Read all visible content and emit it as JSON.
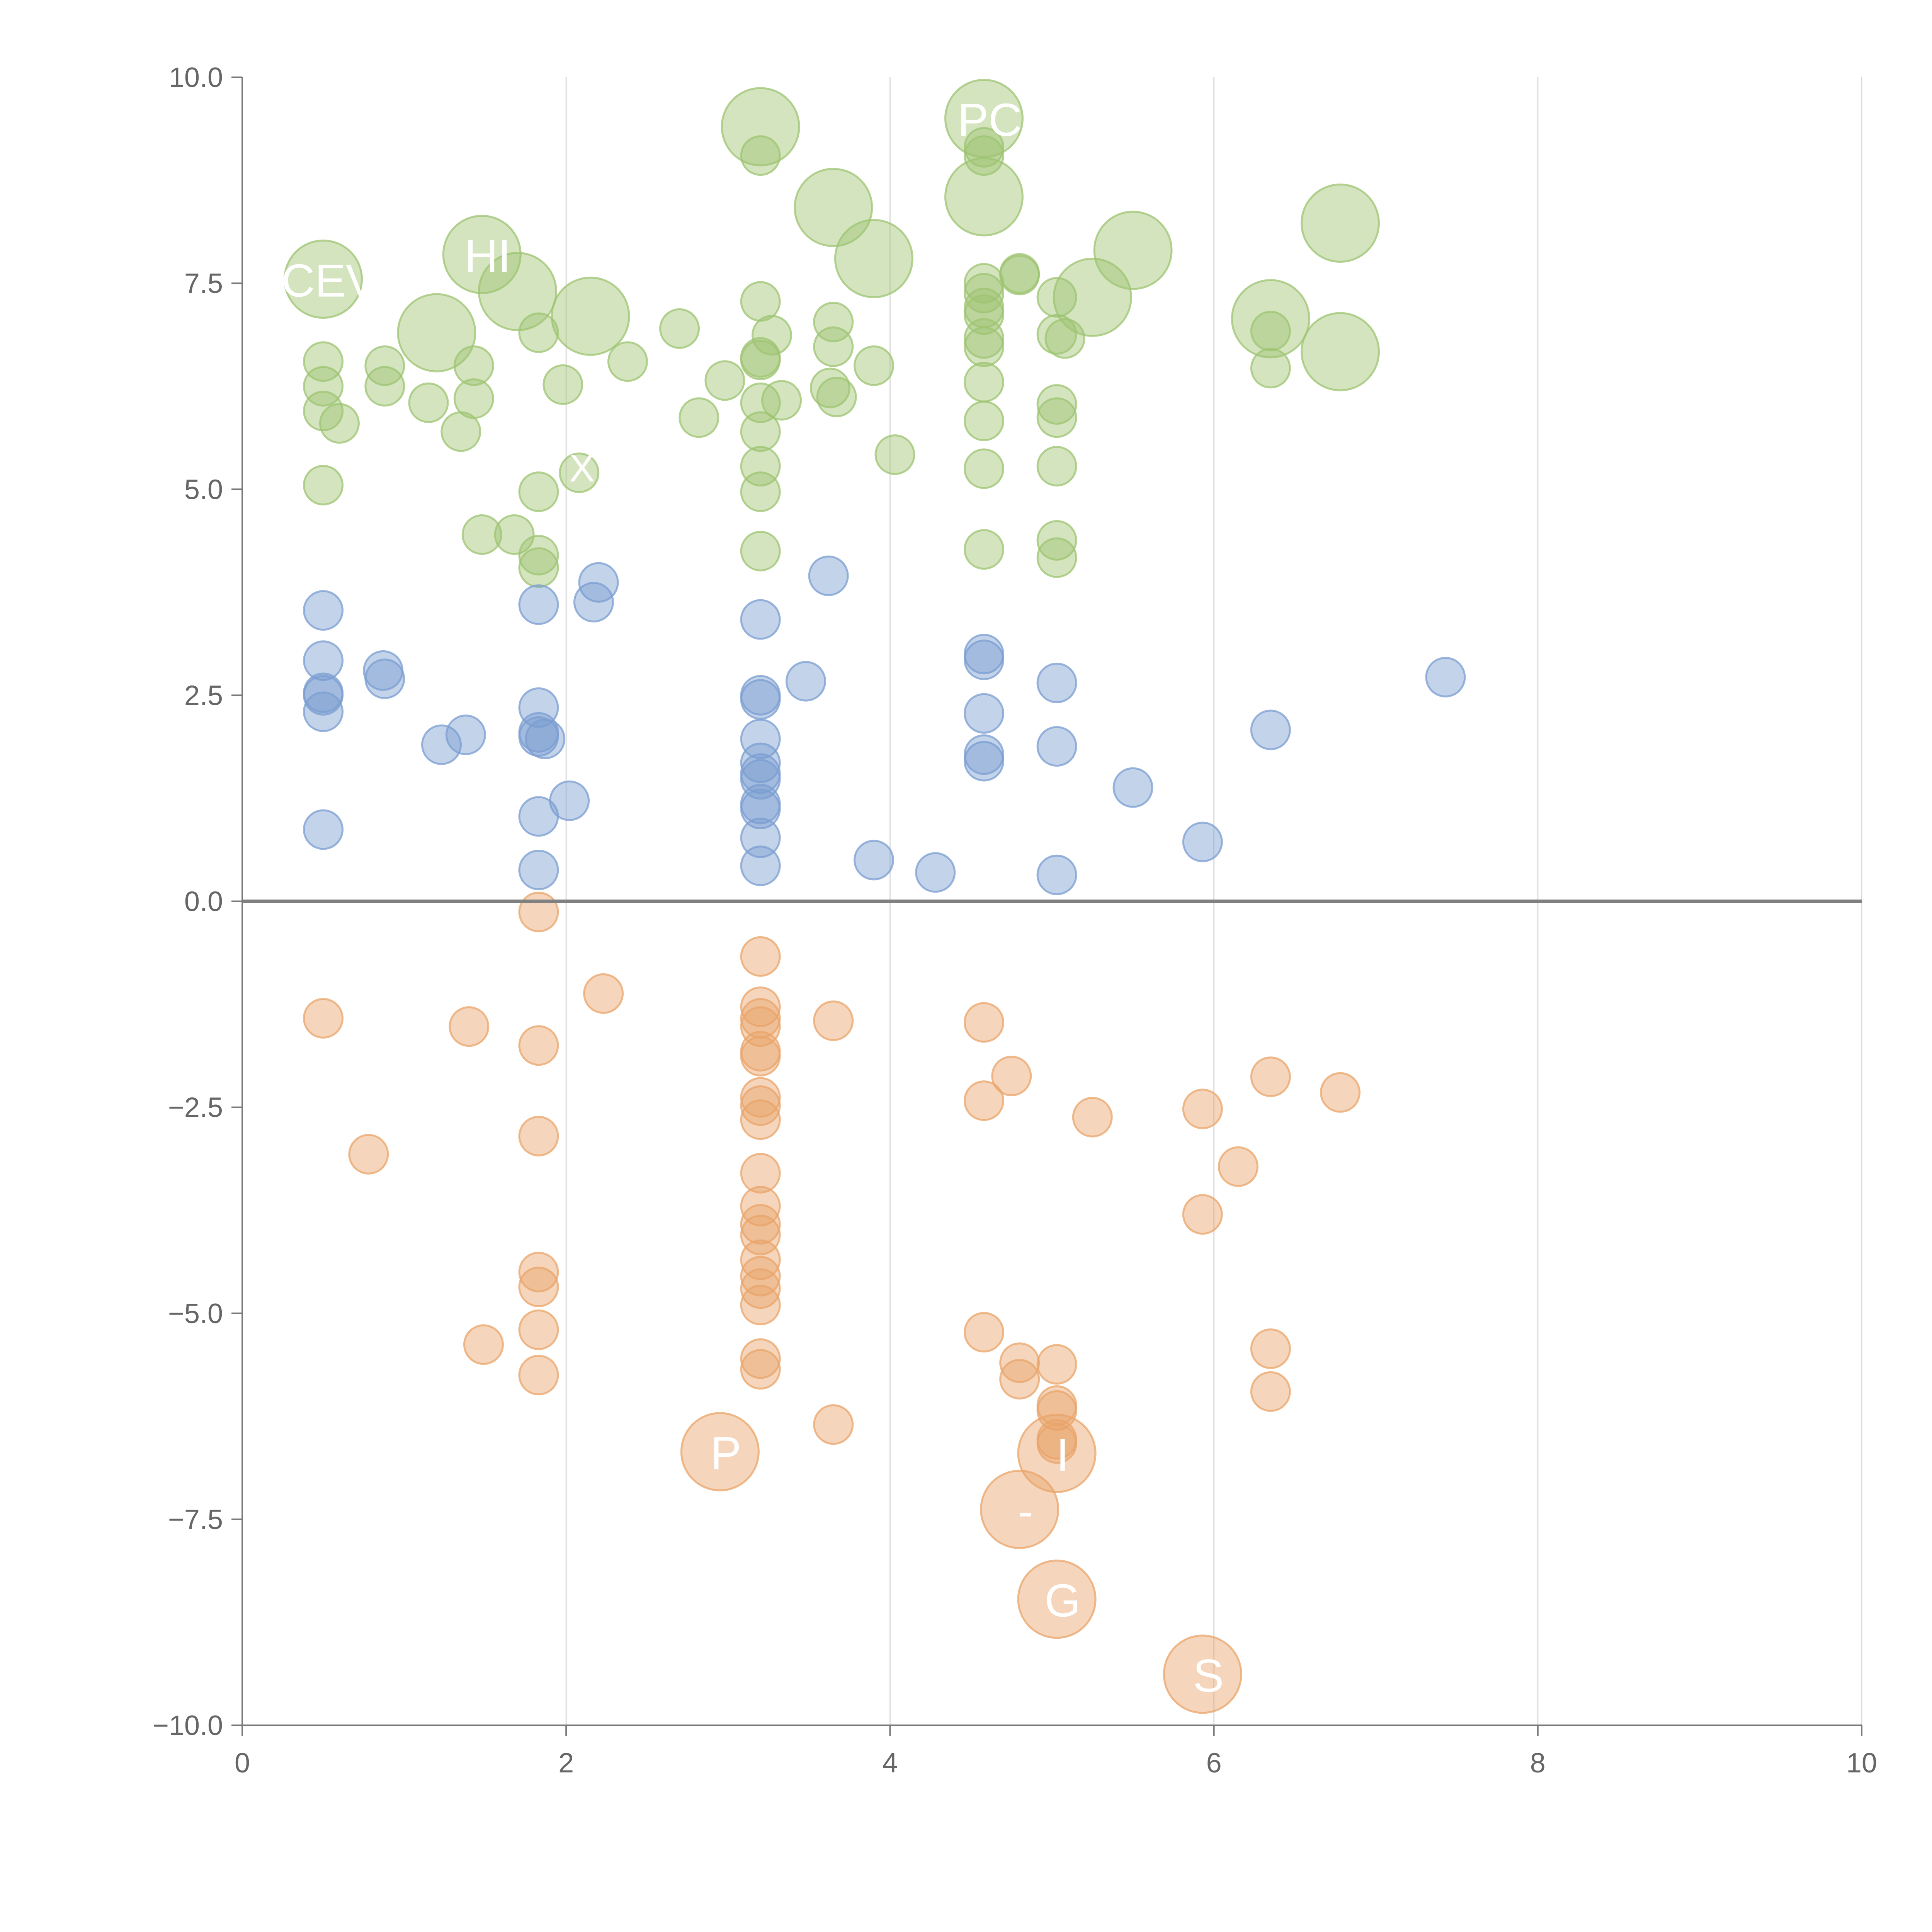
{
  "chart_data": {
    "type": "scatter",
    "title": "",
    "xlabel": "",
    "ylabel": "",
    "xlim": [
      0,
      10
    ],
    "ylim": [
      -10,
      10
    ],
    "grid": "vertical",
    "reference_line_y": 0,
    "x_ticks": [
      0,
      2,
      4,
      6,
      8,
      10
    ],
    "y_ticks": [
      -10,
      -7.5,
      -5,
      -2.5,
      0,
      2.5,
      5,
      7.5,
      10
    ],
    "x_tick_labels": [
      "0",
      "2",
      "4",
      "6",
      "8",
      "10"
    ],
    "y_tick_labels": [
      "−10.0",
      "−7.5",
      "−5.0",
      "−2.5",
      "0.0",
      "2.5",
      "5.0",
      "7.5",
      "10.0"
    ],
    "series": [
      {
        "name": "green",
        "color": "#9dc472",
        "points": [
          {
            "x": 0.5,
            "y": 7.55,
            "size": "large",
            "label": "CEV"
          },
          {
            "x": 0.5,
            "y": 6.55
          },
          {
            "x": 0.5,
            "y": 6.25
          },
          {
            "x": 0.5,
            "y": 5.95
          },
          {
            "x": 0.5,
            "y": 5.05
          },
          {
            "x": 0.6,
            "y": 5.8
          },
          {
            "x": 0.88,
            "y": 6.5
          },
          {
            "x": 0.88,
            "y": 6.25
          },
          {
            "x": 1.15,
            "y": 6.05
          },
          {
            "x": 1.2,
            "y": 6.9,
            "size": "large"
          },
          {
            "x": 1.35,
            "y": 5.7
          },
          {
            "x": 1.43,
            "y": 6.5
          },
          {
            "x": 1.43,
            "y": 6.1
          },
          {
            "x": 1.48,
            "y": 4.45
          },
          {
            "x": 1.48,
            "y": 7.85,
            "size": "large",
            "label": "HI"
          },
          {
            "x": 1.68,
            "y": 4.45
          },
          {
            "x": 1.7,
            "y": 7.4,
            "size": "large"
          },
          {
            "x": 1.83,
            "y": 6.9
          },
          {
            "x": 1.83,
            "y": 4.97
          },
          {
            "x": 1.83,
            "y": 4.2
          },
          {
            "x": 1.83,
            "y": 4.05
          },
          {
            "x": 1.98,
            "y": 6.27
          },
          {
            "x": 2.08,
            "y": 5.2,
            "label": "X"
          },
          {
            "x": 2.15,
            "y": 7.1,
            "size": "large"
          },
          {
            "x": 2.38,
            "y": 6.55
          },
          {
            "x": 2.7,
            "y": 6.95
          },
          {
            "x": 2.82,
            "y": 5.87
          },
          {
            "x": 2.98,
            "y": 6.32
          },
          {
            "x": 3.2,
            "y": 9.4,
            "size": "large"
          },
          {
            "x": 3.2,
            "y": 9.05
          },
          {
            "x": 3.2,
            "y": 7.28
          },
          {
            "x": 3.2,
            "y": 6.6
          },
          {
            "x": 3.2,
            "y": 6.57
          },
          {
            "x": 3.2,
            "y": 6.05
          },
          {
            "x": 3.2,
            "y": 5.7
          },
          {
            "x": 3.2,
            "y": 5.28
          },
          {
            "x": 3.2,
            "y": 4.97
          },
          {
            "x": 3.2,
            "y": 4.25
          },
          {
            "x": 3.27,
            "y": 6.87
          },
          {
            "x": 3.33,
            "y": 6.08
          },
          {
            "x": 3.65,
            "y": 8.42,
            "size": "large"
          },
          {
            "x": 3.65,
            "y": 7.03
          },
          {
            "x": 3.65,
            "y": 6.73
          },
          {
            "x": 3.63,
            "y": 6.23
          },
          {
            "x": 3.67,
            "y": 6.12
          },
          {
            "x": 3.9,
            "y": 7.8,
            "size": "large"
          },
          {
            "x": 3.9,
            "y": 6.5
          },
          {
            "x": 4.03,
            "y": 5.42
          },
          {
            "x": 4.58,
            "y": 9.5,
            "size": "large",
            "label": "PC"
          },
          {
            "x": 4.58,
            "y": 9.15
          },
          {
            "x": 4.58,
            "y": 9.05
          },
          {
            "x": 4.58,
            "y": 8.55,
            "size": "large"
          },
          {
            "x": 4.58,
            "y": 7.5
          },
          {
            "x": 4.58,
            "y": 7.38
          },
          {
            "x": 4.58,
            "y": 7.2
          },
          {
            "x": 4.58,
            "y": 7.12
          },
          {
            "x": 4.58,
            "y": 6.83
          },
          {
            "x": 4.58,
            "y": 6.73
          },
          {
            "x": 4.58,
            "y": 6.3
          },
          {
            "x": 4.58,
            "y": 5.83
          },
          {
            "x": 4.58,
            "y": 5.25
          },
          {
            "x": 4.58,
            "y": 4.27
          },
          {
            "x": 4.8,
            "y": 7.6
          },
          {
            "x": 4.8,
            "y": 7.62
          },
          {
            "x": 5.03,
            "y": 7.33
          },
          {
            "x": 5.03,
            "y": 6.88
          },
          {
            "x": 5.03,
            "y": 6.03
          },
          {
            "x": 5.03,
            "y": 5.87
          },
          {
            "x": 5.03,
            "y": 5.28
          },
          {
            "x": 5.03,
            "y": 4.38
          },
          {
            "x": 5.03,
            "y": 4.17
          },
          {
            "x": 5.08,
            "y": 6.83
          },
          {
            "x": 5.25,
            "y": 7.33,
            "size": "large"
          },
          {
            "x": 5.5,
            "y": 7.9,
            "size": "large"
          },
          {
            "x": 6.35,
            "y": 7.07,
            "size": "large"
          },
          {
            "x": 6.35,
            "y": 6.92
          },
          {
            "x": 6.35,
            "y": 6.47
          },
          {
            "x": 6.78,
            "y": 8.23,
            "size": "large"
          },
          {
            "x": 6.78,
            "y": 6.67,
            "size": "large"
          }
        ]
      },
      {
        "name": "blue",
        "color": "#7b9ed1",
        "points": [
          {
            "x": 0.5,
            "y": 3.53
          },
          {
            "x": 0.5,
            "y": 2.92
          },
          {
            "x": 0.5,
            "y": 2.53
          },
          {
            "x": 0.5,
            "y": 2.5
          },
          {
            "x": 0.5,
            "y": 2.3
          },
          {
            "x": 0.5,
            "y": 0.87
          },
          {
            "x": 0.87,
            "y": 2.8
          },
          {
            "x": 0.88,
            "y": 2.7
          },
          {
            "x": 1.23,
            "y": 1.9
          },
          {
            "x": 1.38,
            "y": 2.02
          },
          {
            "x": 1.83,
            "y": 3.6
          },
          {
            "x": 1.83,
            "y": 2.35
          },
          {
            "x": 1.83,
            "y": 2.05
          },
          {
            "x": 1.83,
            "y": 2.0
          },
          {
            "x": 1.87,
            "y": 1.97
          },
          {
            "x": 1.83,
            "y": 1.03
          },
          {
            "x": 1.83,
            "y": 0.38
          },
          {
            "x": 2.02,
            "y": 1.22
          },
          {
            "x": 2.17,
            "y": 3.63
          },
          {
            "x": 2.2,
            "y": 3.87
          },
          {
            "x": 3.2,
            "y": 3.42
          },
          {
            "x": 3.2,
            "y": 2.5
          },
          {
            "x": 3.2,
            "y": 2.45
          },
          {
            "x": 3.2,
            "y": 1.97
          },
          {
            "x": 3.2,
            "y": 1.68
          },
          {
            "x": 3.2,
            "y": 1.55
          },
          {
            "x": 3.2,
            "y": 1.48
          },
          {
            "x": 3.2,
            "y": 1.18
          },
          {
            "x": 3.2,
            "y": 1.12
          },
          {
            "x": 3.2,
            "y": 0.77
          },
          {
            "x": 3.2,
            "y": 0.43
          },
          {
            "x": 3.48,
            "y": 2.67
          },
          {
            "x": 3.62,
            "y": 3.95
          },
          {
            "x": 3.9,
            "y": 0.5
          },
          {
            "x": 4.28,
            "y": 0.35
          },
          {
            "x": 4.58,
            "y": 3.0
          },
          {
            "x": 4.58,
            "y": 2.93
          },
          {
            "x": 4.58,
            "y": 2.28
          },
          {
            "x": 4.58,
            "y": 1.78
          },
          {
            "x": 4.58,
            "y": 1.7
          },
          {
            "x": 5.03,
            "y": 2.65
          },
          {
            "x": 5.03,
            "y": 1.88
          },
          {
            "x": 5.03,
            "y": 0.32
          },
          {
            "x": 5.5,
            "y": 1.38
          },
          {
            "x": 5.93,
            "y": 0.72
          },
          {
            "x": 6.35,
            "y": 2.08
          },
          {
            "x": 7.43,
            "y": 2.72
          }
        ]
      },
      {
        "name": "orange",
        "color": "#e9a46a",
        "points": [
          {
            "x": 0.5,
            "y": -1.42
          },
          {
            "x": 0.78,
            "y": -3.07
          },
          {
            "x": 1.4,
            "y": -1.52
          },
          {
            "x": 1.49,
            "y": -5.38
          },
          {
            "x": 1.83,
            "y": -0.13
          },
          {
            "x": 1.83,
            "y": -1.75
          },
          {
            "x": 1.83,
            "y": -2.85
          },
          {
            "x": 1.83,
            "y": -4.5
          },
          {
            "x": 1.83,
            "y": -4.68
          },
          {
            "x": 1.83,
            "y": -5.2
          },
          {
            "x": 1.83,
            "y": -5.75
          },
          {
            "x": 2.23,
            "y": -1.12
          },
          {
            "x": 2.95,
            "y": -6.68,
            "size": "large",
            "label": "P"
          },
          {
            "x": 3.2,
            "y": -0.67
          },
          {
            "x": 3.2,
            "y": -1.28
          },
          {
            "x": 3.2,
            "y": -1.42
          },
          {
            "x": 3.2,
            "y": -1.52
          },
          {
            "x": 3.2,
            "y": -1.82
          },
          {
            "x": 3.2,
            "y": -1.88
          },
          {
            "x": 3.2,
            "y": -2.38
          },
          {
            "x": 3.2,
            "y": -2.48
          },
          {
            "x": 3.2,
            "y": -2.65
          },
          {
            "x": 3.2,
            "y": -3.3
          },
          {
            "x": 3.2,
            "y": -3.7
          },
          {
            "x": 3.2,
            "y": -3.92
          },
          {
            "x": 3.2,
            "y": -4.05
          },
          {
            "x": 3.2,
            "y": -4.35
          },
          {
            "x": 3.2,
            "y": -4.55
          },
          {
            "x": 3.2,
            "y": -4.7
          },
          {
            "x": 3.2,
            "y": -4.9
          },
          {
            "x": 3.2,
            "y": -5.55
          },
          {
            "x": 3.2,
            "y": -5.68
          },
          {
            "x": 3.65,
            "y": -1.45
          },
          {
            "x": 3.65,
            "y": -6.35
          },
          {
            "x": 4.58,
            "y": -1.47
          },
          {
            "x": 4.58,
            "y": -2.42
          },
          {
            "x": 4.58,
            "y": -5.23
          },
          {
            "x": 4.75,
            "y": -2.12
          },
          {
            "x": 4.8,
            "y": -5.6
          },
          {
            "x": 4.8,
            "y": -5.8
          },
          {
            "x": 4.8,
            "y": -7.38,
            "size": "large",
            "label": "-"
          },
          {
            "x": 5.03,
            "y": -5.62
          },
          {
            "x": 5.03,
            "y": -6.12
          },
          {
            "x": 5.03,
            "y": -6.18
          },
          {
            "x": 5.03,
            "y": -6.53
          },
          {
            "x": 5.03,
            "y": -6.58
          },
          {
            "x": 5.03,
            "y": -6.7,
            "size": "large",
            "label": "I"
          },
          {
            "x": 5.03,
            "y": -8.47,
            "size": "large",
            "label": "G"
          },
          {
            "x": 5.25,
            "y": -2.62
          },
          {
            "x": 5.93,
            "y": -2.52
          },
          {
            "x": 5.93,
            "y": -3.8
          },
          {
            "x": 5.93,
            "y": -9.38,
            "size": "large",
            "label": "S"
          },
          {
            "x": 6.15,
            "y": -3.22
          },
          {
            "x": 6.35,
            "y": -2.13
          },
          {
            "x": 6.35,
            "y": -5.43
          },
          {
            "x": 6.35,
            "y": -5.95
          },
          {
            "x": 6.78,
            "y": -2.32
          }
        ]
      }
    ]
  }
}
